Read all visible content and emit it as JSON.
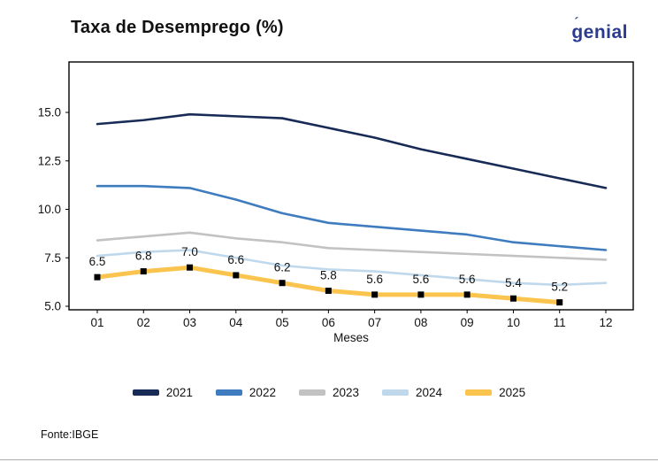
{
  "header": {
    "title": "Taxa de Desemprego (%)",
    "logo_text": "genial",
    "logo_accent": "´",
    "logo_color": "#2A3B8F"
  },
  "chart_data": {
    "type": "line",
    "title": "Taxa de Desemprego (%)",
    "xlabel": "Meses",
    "ylabel": "",
    "categories": [
      "01",
      "02",
      "03",
      "04",
      "05",
      "06",
      "07",
      "08",
      "09",
      "10",
      "11",
      "12"
    ],
    "yticks": [
      "5.0",
      "7.5",
      "10.0",
      "12.5",
      "15.0"
    ],
    "ylim": [
      4.8,
      17.6
    ],
    "grid": false,
    "legend_position": "bottom",
    "frame": true,
    "series": [
      {
        "name": "2021",
        "color": "#182B56",
        "width": 2.6,
        "markers": false,
        "labels": false,
        "values": [
          14.4,
          14.6,
          14.9,
          14.8,
          14.7,
          14.2,
          13.7,
          13.1,
          12.6,
          12.1,
          11.6,
          11.1
        ]
      },
      {
        "name": "2022",
        "color": "#3F7CBF",
        "width": 2.6,
        "markers": false,
        "labels": false,
        "values": [
          11.2,
          11.2,
          11.1,
          10.5,
          9.8,
          9.3,
          9.1,
          8.9,
          8.7,
          8.3,
          8.1,
          7.9
        ]
      },
      {
        "name": "2023",
        "color": "#C2C2C2",
        "width": 2.6,
        "markers": false,
        "labels": false,
        "values": [
          8.4,
          8.6,
          8.8,
          8.5,
          8.3,
          8.0,
          7.9,
          7.8,
          7.7,
          7.6,
          7.5,
          7.4
        ]
      },
      {
        "name": "2024",
        "color": "#BFD8EC",
        "width": 2.6,
        "markers": false,
        "labels": false,
        "values": [
          7.6,
          7.8,
          7.9,
          7.5,
          7.1,
          6.9,
          6.8,
          6.6,
          6.4,
          6.2,
          6.1,
          6.2
        ]
      },
      {
        "name": "2025",
        "color": "#FAC44E",
        "width": 5,
        "markers": true,
        "labels": true,
        "values": [
          6.5,
          6.8,
          7.0,
          6.6,
          6.2,
          5.8,
          5.6,
          5.6,
          5.6,
          5.4,
          5.2
        ]
      }
    ]
  },
  "footer": {
    "source": "Fonte:IBGE"
  }
}
